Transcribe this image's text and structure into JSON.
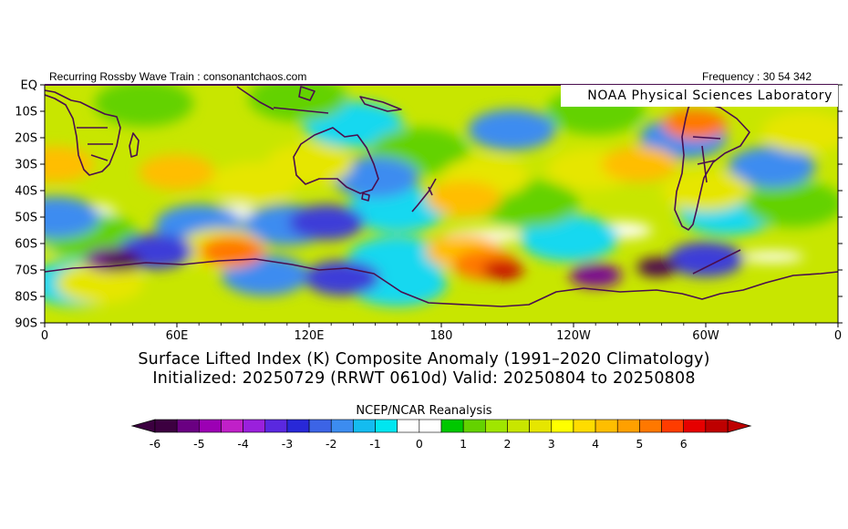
{
  "header": {
    "credit": "Recurring Rossby Wave Train : consonantchaos.com",
    "frequency": "Frequency : 30 54 342",
    "lab": "NOAA Physical Sciences Laboratory"
  },
  "titles": {
    "line1": "Surface Lifted Index (K) Composite Anomaly (1991–2020 Climatology)",
    "line2": "Initialized: 20250729 (RRWT 0610d) Valid: 20250804 to 20250808"
  },
  "map": {
    "projection": "cylindrical equidistant, 0 to 360 E, EQ to 90S",
    "y_tick_labels": [
      "EQ",
      "10S",
      "20S",
      "30S",
      "40S",
      "50S",
      "60S",
      "70S",
      "80S",
      "90S"
    ],
    "x_tick_labels": [
      "0",
      "60E",
      "120E",
      "180",
      "120W",
      "60W",
      "0"
    ],
    "anomaly_blobs": [
      {
        "lon": 35,
        "lat": -67,
        "value": -6
      },
      {
        "lon": 30,
        "lat": -66,
        "value": -5
      },
      {
        "lon": 50,
        "lat": -63,
        "value": -3
      },
      {
        "lon": 5,
        "lat": -50,
        "value": -2
      },
      {
        "lon": 70,
        "lat": -53,
        "value": -2
      },
      {
        "lon": 110,
        "lat": -53,
        "value": -2
      },
      {
        "lon": 128,
        "lat": -52,
        "value": -3
      },
      {
        "lon": 150,
        "lat": -35,
        "value": -2
      },
      {
        "lon": 140,
        "lat": -15,
        "value": -1
      },
      {
        "lon": 160,
        "lat": -47,
        "value": -1
      },
      {
        "lon": 100,
        "lat": -72,
        "value": -2
      },
      {
        "lon": 135,
        "lat": -73,
        "value": -3
      },
      {
        "lon": 160,
        "lat": -66,
        "value": -1
      },
      {
        "lon": 250,
        "lat": -72,
        "value": -5
      },
      {
        "lon": 278,
        "lat": -69,
        "value": -6
      },
      {
        "lon": 300,
        "lat": -66,
        "value": -3
      },
      {
        "lon": 238,
        "lat": -58,
        "value": -1
      },
      {
        "lon": 212,
        "lat": -17,
        "value": -2
      },
      {
        "lon": 290,
        "lat": -20,
        "value": -2
      },
      {
        "lon": 330,
        "lat": -31,
        "value": -2
      },
      {
        "lon": 310,
        "lat": -48,
        "value": -1
      },
      {
        "lon": 15,
        "lat": -75,
        "value": -1
      },
      {
        "lon": 160,
        "lat": -75,
        "value": -1
      },
      {
        "lon": 85,
        "lat": -63,
        "value": 4
      },
      {
        "lon": 80,
        "lat": -62,
        "value": 2
      },
      {
        "lon": 208,
        "lat": -70,
        "value": 6
      },
      {
        "lon": 200,
        "lat": -68,
        "value": 4
      },
      {
        "lon": 190,
        "lat": -63,
        "value": 3
      },
      {
        "lon": 190,
        "lat": -43,
        "value": 3
      },
      {
        "lon": 200,
        "lat": -35,
        "value": 2
      },
      {
        "lon": 5,
        "lat": -30,
        "value": 3
      },
      {
        "lon": 60,
        "lat": -33,
        "value": 3
      },
      {
        "lon": 95,
        "lat": -37,
        "value": 2
      },
      {
        "lon": 120,
        "lat": -30,
        "value": 2
      },
      {
        "lon": 115,
        "lat": -5,
        "value": 1
      },
      {
        "lon": 45,
        "lat": -7,
        "value": 1
      },
      {
        "lon": 295,
        "lat": -15,
        "value": 4
      },
      {
        "lon": 270,
        "lat": -30,
        "value": 3
      },
      {
        "lon": 248,
        "lat": -32,
        "value": 2
      },
      {
        "lon": 345,
        "lat": -18,
        "value": 2
      },
      {
        "lon": 340,
        "lat": -45,
        "value": 1
      },
      {
        "lon": 25,
        "lat": -75,
        "value": 2
      },
      {
        "lon": 20,
        "lat": -57,
        "value": 1
      },
      {
        "lon": 220,
        "lat": -45,
        "value": 1
      },
      {
        "lon": 300,
        "lat": -40,
        "value": 2
      },
      {
        "lon": 170,
        "lat": -25,
        "value": 1
      },
      {
        "lon": 250,
        "lat": -10,
        "value": 1
      }
    ]
  },
  "colorbar": {
    "title": "NCEP/NCAR Reanalysis",
    "tick_labels": [
      "-6",
      "-5",
      "-4",
      "-3",
      "-2",
      "-1",
      "0",
      "1",
      "2",
      "3",
      "4",
      "5",
      "6"
    ],
    "colors": [
      "#3c0040",
      "#6a0082",
      "#9c00b4",
      "#c020c8",
      "#9a20dc",
      "#5a28e0",
      "#2828d8",
      "#3c64e6",
      "#3c8cf0",
      "#14bcf0",
      "#00e6f0",
      "#ffffff",
      "#ffffff",
      "#00c800",
      "#64d200",
      "#a0e600",
      "#c8e600",
      "#e6e600",
      "#ffff00",
      "#ffdc00",
      "#ffbe00",
      "#ffa000",
      "#ff7800",
      "#ff3c00",
      "#e60000",
      "#be0000"
    ]
  }
}
